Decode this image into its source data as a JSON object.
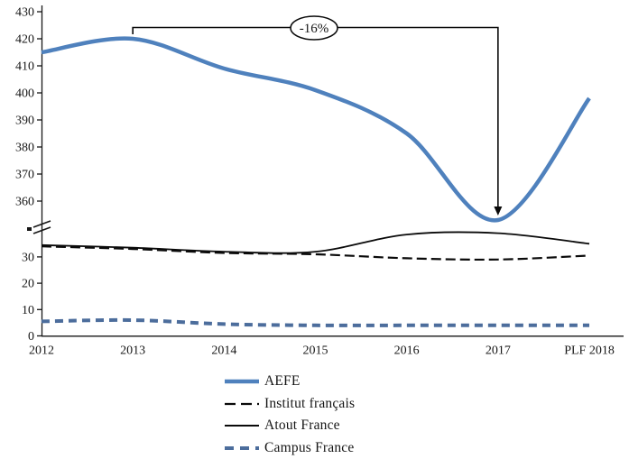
{
  "chart_data": {
    "type": "line",
    "title": "",
    "categories": [
      "2012",
      "2013",
      "2014",
      "2015",
      "2016",
      "2017",
      "PLF 2018"
    ],
    "series": [
      {
        "name": "AEFE",
        "axis": "upper",
        "color": "#4f81bd",
        "line_style": "solid",
        "thickness": 4.5,
        "values": [
          415,
          420,
          409,
          401,
          385,
          353,
          398
        ]
      },
      {
        "name": "Institut français",
        "axis": "lower",
        "color": "#0a0a0a",
        "line_style": "dashed",
        "thickness": 2.2,
        "values": [
          34,
          33,
          31.5,
          31,
          29.5,
          29,
          30.5
        ]
      },
      {
        "name": "Atout France",
        "axis": "lower",
        "color": "#0a0a0a",
        "line_style": "solid",
        "thickness": 1.8,
        "values": [
          34.5,
          33.5,
          32,
          32,
          38.5,
          39,
          35
        ]
      },
      {
        "name": "Campus France",
        "axis": "lower",
        "color": "#4c6d9c",
        "line_style": "dashed",
        "thickness": 4,
        "values": [
          5.5,
          6,
          4.5,
          4,
          4,
          4,
          4
        ]
      }
    ],
    "y_axis": {
      "broken": true,
      "upper_range": [
        360,
        430
      ],
      "upper_ticks": [
        "430",
        "420",
        "410",
        "400",
        "390",
        "380",
        "370",
        "360"
      ],
      "lower_range": [
        0,
        30
      ],
      "lower_ticks": [
        "30",
        "20",
        "10",
        "0"
      ]
    },
    "x_axis": {
      "tick_labels": [
        "2012",
        "2013",
        "2014",
        "2015",
        "2016",
        "2017",
        "PLF 2018"
      ]
    },
    "annotation": {
      "label": "-16%",
      "from_category": "2013",
      "to_category": "2017",
      "peak_value": 420,
      "trough_value": 353
    },
    "legend_position": "bottom",
    "grid": false
  }
}
